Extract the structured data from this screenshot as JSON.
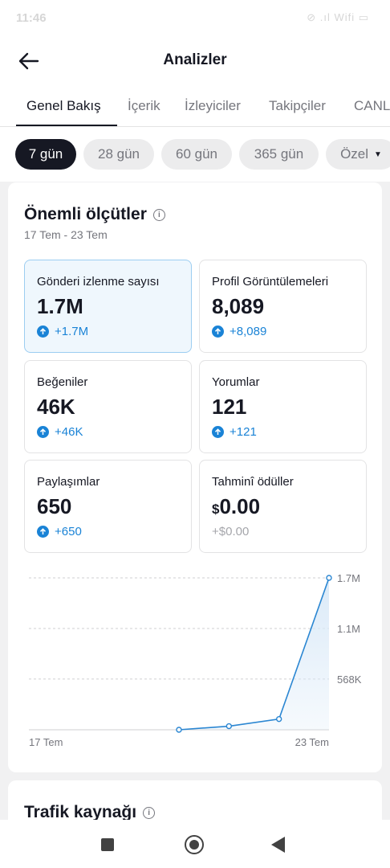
{
  "status_bar": {
    "time": "11:46",
    "icons": "⊘ .ıl Wifi ▭"
  },
  "header": {
    "title": "Analizler",
    "back_icon": "arrow-left-icon"
  },
  "tabs": [
    "Genel Bakış",
    "İçerik",
    "İzleyiciler",
    "Takipçiler",
    "CANLI"
  ],
  "active_tab": 0,
  "date_chips": [
    "7 gün",
    "28 gün",
    "60 gün",
    "365 gün",
    "Özel"
  ],
  "active_chip": 0,
  "metrics_section": {
    "title": "Önemli ölçütler",
    "date_range": "17 Tem - 23 Tem",
    "metrics": [
      {
        "label": "Gönderi izlenme sayısı",
        "value": "1.7M",
        "change": "+1.7M"
      },
      {
        "label": "Profil Görüntülemeleri",
        "value": "8,089",
        "change": "+8,089"
      },
      {
        "label": "Beğeniler",
        "value": "46K",
        "change": "+46K"
      },
      {
        "label": "Yorumlar",
        "value": "121",
        "change": "+121"
      },
      {
        "label": "Paylaşımlar",
        "value": "650",
        "change": "+650"
      },
      {
        "label": "Tahminî ödüller",
        "currency": "$",
        "value": "0.00",
        "change": "+$0.00"
      }
    ]
  },
  "chart_data": {
    "type": "area",
    "x": [
      "17 Tem",
      "18 Tem",
      "19 Tem",
      "20 Tem",
      "21 Tem",
      "22 Tem",
      "23 Tem"
    ],
    "values": [
      0,
      0,
      0,
      0,
      40000,
      120000,
      1700000
    ],
    "x_tick_labels": [
      "17 Tem",
      "23 Tem"
    ],
    "y_tick_labels": [
      "1.7M",
      "1.1M",
      "568K"
    ],
    "y_ticks": [
      1700000,
      1133000,
      568000
    ],
    "ylim": [
      0,
      1700000
    ],
    "grid": true,
    "line_color": "#2a86d2",
    "fill_color": "#dbeaf8"
  },
  "traffic_section": {
    "title": "Trafik kaynağı"
  },
  "colors": {
    "accent": "#1a83d6",
    "dark": "#161823",
    "muted": "#75767d"
  }
}
